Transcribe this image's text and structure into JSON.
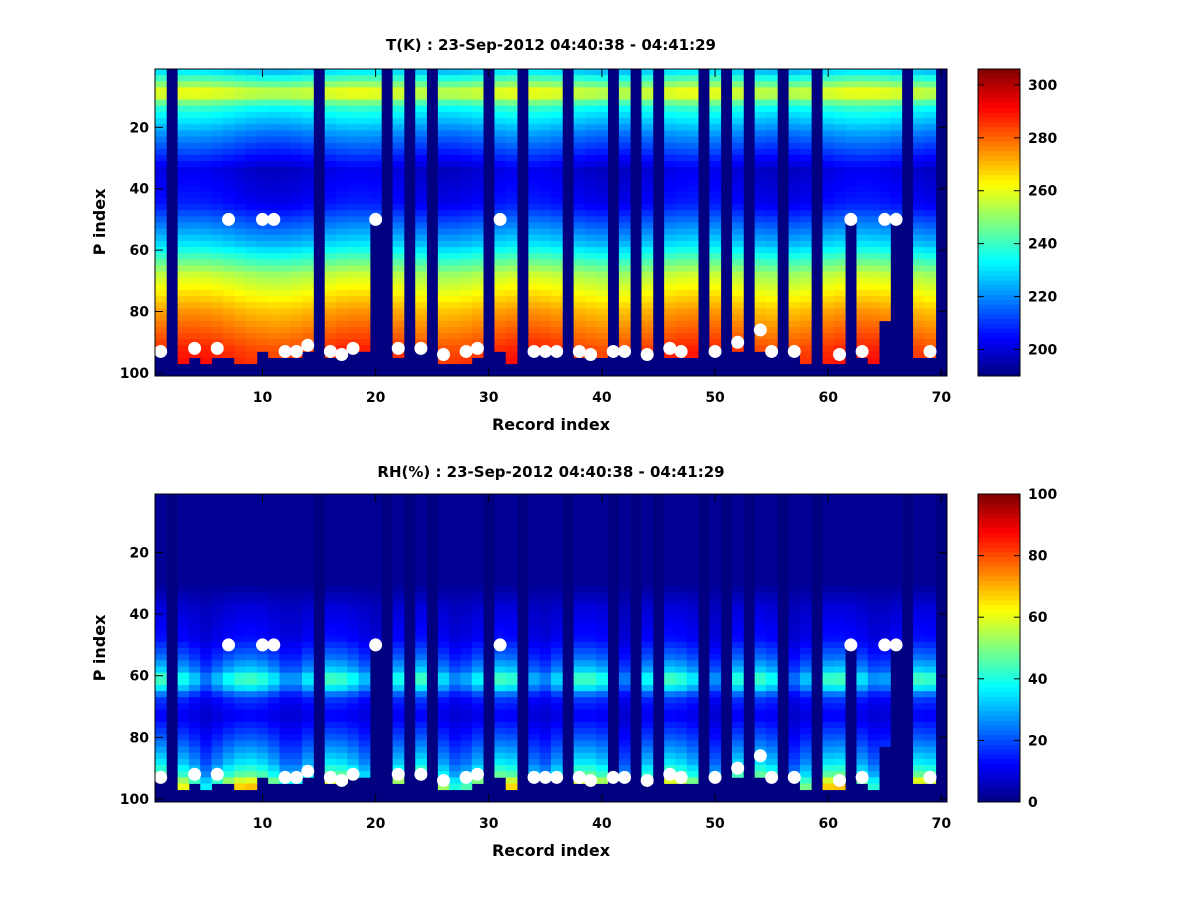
{
  "chart_data": [
    {
      "type": "heatmap",
      "title": "T(K) : 23-Sep-2012 04:40:38 - 04:41:29",
      "xlabel": "Record index",
      "ylabel": "P index",
      "xlim": [
        0.5,
        70.5
      ],
      "ylim": [
        1,
        101
      ],
      "x_ticks": [
        "10",
        "20",
        "30",
        "40",
        "50",
        "60",
        "70"
      ],
      "y_ticks": [
        "20",
        "40",
        "60",
        "80",
        "100"
      ],
      "colorbar": {
        "range": [
          190,
          306
        ],
        "ticks": [
          "200",
          "220",
          "240",
          "260",
          "280",
          "300"
        ]
      },
      "colormap": "jet",
      "profile_levels_by_p_index": [
        [
          1,
          225
        ],
        [
          9,
          262
        ],
        [
          13,
          238
        ],
        [
          22,
          220
        ],
        [
          34,
          200
        ],
        [
          45,
          205
        ],
        [
          58,
          228
        ],
        [
          68,
          254
        ],
        [
          80,
          272
        ],
        [
          92,
          285
        ],
        [
          100,
          290
        ]
      ],
      "masked_records": [
        2,
        15,
        21,
        23,
        25,
        30,
        33,
        37,
        41,
        43,
        45,
        49,
        51,
        53,
        56,
        59,
        67,
        70
      ],
      "partial_records": [
        {
          "record": 20,
          "valid_to_p_index": 51
        },
        {
          "record": 62,
          "valid_to_p_index": 51
        },
        {
          "record": 65,
          "valid_to_p_index": 83
        },
        {
          "record": 66,
          "valid_to_p_index": 51
        }
      ],
      "surface_p_index": [
        93,
        95,
        97,
        95,
        97,
        94,
        95,
        96,
        97,
        93,
        94,
        94,
        94,
        93,
        93,
        95,
        94,
        93,
        93,
        93,
        94,
        94,
        93,
        93,
        93,
        97,
        97,
        97,
        95,
        94,
        93,
        97,
        97,
        93,
        93,
        93,
        94,
        95,
        95,
        95,
        93,
        93,
        93,
        95,
        95,
        94,
        94,
        94,
        97,
        93,
        93,
        93,
        93,
        93,
        93,
        97,
        93,
        97,
        93,
        97,
        97,
        93,
        95,
        97,
        95,
        93,
        93,
        95,
        95,
        93
      ],
      "markers": [
        {
          "x": 1,
          "y": 93
        },
        {
          "x": 4,
          "y": 92
        },
        {
          "x": 6,
          "y": 92
        },
        {
          "x": 7,
          "y": 50
        },
        {
          "x": 10,
          "y": 50
        },
        {
          "x": 11,
          "y": 50
        },
        {
          "x": 12,
          "y": 93
        },
        {
          "x": 13,
          "y": 93
        },
        {
          "x": 14,
          "y": 91
        },
        {
          "x": 16,
          "y": 93
        },
        {
          "x": 17,
          "y": 94
        },
        {
          "x": 18,
          "y": 92
        },
        {
          "x": 20,
          "y": 50
        },
        {
          "x": 22,
          "y": 92
        },
        {
          "x": 24,
          "y": 92
        },
        {
          "x": 26,
          "y": 94
        },
        {
          "x": 28,
          "y": 93
        },
        {
          "x": 29,
          "y": 92
        },
        {
          "x": 31,
          "y": 50
        },
        {
          "x": 34,
          "y": 93
        },
        {
          "x": 35,
          "y": 93
        },
        {
          "x": 36,
          "y": 93
        },
        {
          "x": 38,
          "y": 93
        },
        {
          "x": 39,
          "y": 94
        },
        {
          "x": 41,
          "y": 93
        },
        {
          "x": 42,
          "y": 93
        },
        {
          "x": 44,
          "y": 94
        },
        {
          "x": 46,
          "y": 92
        },
        {
          "x": 47,
          "y": 93
        },
        {
          "x": 50,
          "y": 93
        },
        {
          "x": 52,
          "y": 90
        },
        {
          "x": 54,
          "y": 86
        },
        {
          "x": 55,
          "y": 93
        },
        {
          "x": 57,
          "y": 93
        },
        {
          "x": 61,
          "y": 94
        },
        {
          "x": 62,
          "y": 50
        },
        {
          "x": 63,
          "y": 93
        },
        {
          "x": 65,
          "y": 50
        },
        {
          "x": 66,
          "y": 50
        },
        {
          "x": 69,
          "y": 93
        }
      ]
    },
    {
      "type": "heatmap",
      "title": "RH(%) : 23-Sep-2012 04:40:38 - 04:41:29",
      "xlabel": "Record index",
      "ylabel": "P index",
      "xlim": [
        0.5,
        70.5
      ],
      "ylim": [
        1,
        101
      ],
      "x_ticks": [
        "10",
        "20",
        "30",
        "40",
        "50",
        "60",
        "70"
      ],
      "y_ticks": [
        "20",
        "40",
        "60",
        "80",
        "100"
      ],
      "colorbar": {
        "range": [
          0,
          100
        ],
        "ticks": [
          "0",
          "20",
          "40",
          "60",
          "80",
          "100"
        ]
      },
      "colormap": "jet",
      "profile_levels_by_p_index": [
        [
          1,
          2
        ],
        [
          30,
          2
        ],
        [
          38,
          8
        ],
        [
          48,
          12
        ],
        [
          54,
          20
        ],
        [
          58,
          28
        ],
        [
          61,
          40
        ],
        [
          64,
          30
        ],
        [
          67,
          16
        ],
        [
          73,
          10
        ],
        [
          80,
          18
        ],
        [
          88,
          30
        ],
        [
          92,
          40
        ],
        [
          95,
          55
        ],
        [
          97,
          60
        ],
        [
          100,
          60
        ]
      ],
      "masked_records": [
        2,
        15,
        21,
        23,
        25,
        30,
        33,
        37,
        41,
        43,
        45,
        49,
        51,
        53,
        56,
        59,
        67,
        70
      ],
      "partial_records": [
        {
          "record": 20,
          "valid_to_p_index": 51
        },
        {
          "record": 62,
          "valid_to_p_index": 51
        },
        {
          "record": 65,
          "valid_to_p_index": 83
        },
        {
          "record": 66,
          "valid_to_p_index": 51
        }
      ],
      "surface_p_index": [
        93,
        95,
        97,
        95,
        97,
        94,
        95,
        96,
        97,
        93,
        94,
        94,
        94,
        93,
        93,
        95,
        94,
        93,
        93,
        93,
        94,
        94,
        93,
        93,
        93,
        97,
        97,
        97,
        95,
        94,
        93,
        97,
        97,
        93,
        93,
        93,
        94,
        95,
        95,
        95,
        93,
        93,
        93,
        95,
        95,
        94,
        94,
        94,
        97,
        93,
        93,
        93,
        93,
        93,
        93,
        97,
        93,
        97,
        93,
        97,
        97,
        93,
        95,
        97,
        95,
        93,
        93,
        95,
        95,
        93
      ],
      "markers": [
        {
          "x": 1,
          "y": 93
        },
        {
          "x": 4,
          "y": 92
        },
        {
          "x": 6,
          "y": 92
        },
        {
          "x": 7,
          "y": 50
        },
        {
          "x": 10,
          "y": 50
        },
        {
          "x": 11,
          "y": 50
        },
        {
          "x": 12,
          "y": 93
        },
        {
          "x": 13,
          "y": 93
        },
        {
          "x": 14,
          "y": 91
        },
        {
          "x": 16,
          "y": 93
        },
        {
          "x": 17,
          "y": 94
        },
        {
          "x": 18,
          "y": 92
        },
        {
          "x": 20,
          "y": 50
        },
        {
          "x": 22,
          "y": 92
        },
        {
          "x": 24,
          "y": 92
        },
        {
          "x": 26,
          "y": 94
        },
        {
          "x": 28,
          "y": 93
        },
        {
          "x": 29,
          "y": 92
        },
        {
          "x": 31,
          "y": 50
        },
        {
          "x": 34,
          "y": 93
        },
        {
          "x": 35,
          "y": 93
        },
        {
          "x": 36,
          "y": 93
        },
        {
          "x": 38,
          "y": 93
        },
        {
          "x": 39,
          "y": 94
        },
        {
          "x": 41,
          "y": 93
        },
        {
          "x": 42,
          "y": 93
        },
        {
          "x": 44,
          "y": 94
        },
        {
          "x": 46,
          "y": 92
        },
        {
          "x": 47,
          "y": 93
        },
        {
          "x": 50,
          "y": 93
        },
        {
          "x": 52,
          "y": 90
        },
        {
          "x": 54,
          "y": 86
        },
        {
          "x": 55,
          "y": 93
        },
        {
          "x": 57,
          "y": 93
        },
        {
          "x": 61,
          "y": 94
        },
        {
          "x": 62,
          "y": 50
        },
        {
          "x": 63,
          "y": 93
        },
        {
          "x": 65,
          "y": 50
        },
        {
          "x": 66,
          "y": 50
        },
        {
          "x": 69,
          "y": 93
        }
      ]
    }
  ]
}
